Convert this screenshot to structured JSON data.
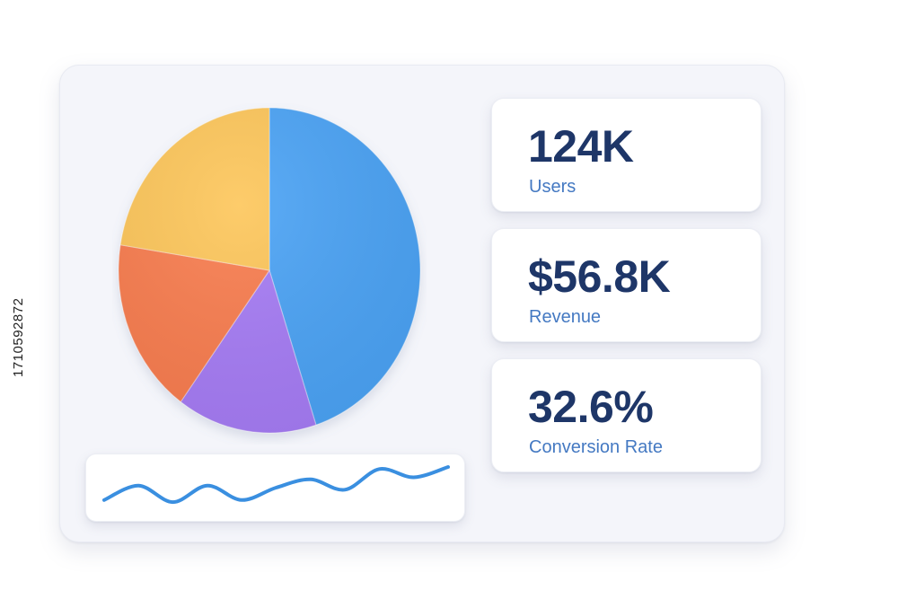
{
  "stats": [
    {
      "value": "124K",
      "label": "Users"
    },
    {
      "value": "$56.8K",
      "label": "Revenue"
    },
    {
      "value": "32.6%",
      "label": "Conversion Rate"
    }
  ],
  "pie": {
    "slices": [
      {
        "share": 0.45,
        "color": "#4ba3f5"
      },
      {
        "share": 0.15,
        "color": "#a67cf5"
      },
      {
        "share": 0.175,
        "color": "#f97d4f"
      },
      {
        "share": 0.225,
        "color": "#fdc65a"
      }
    ]
  },
  "sparkline": {
    "color": "#3a8fe0",
    "values": [
      0.2,
      0.55,
      0.15,
      0.55,
      0.2,
      0.5,
      0.7,
      0.45,
      0.95,
      0.75,
      1.0
    ]
  },
  "watermark_id": "1710592872"
}
